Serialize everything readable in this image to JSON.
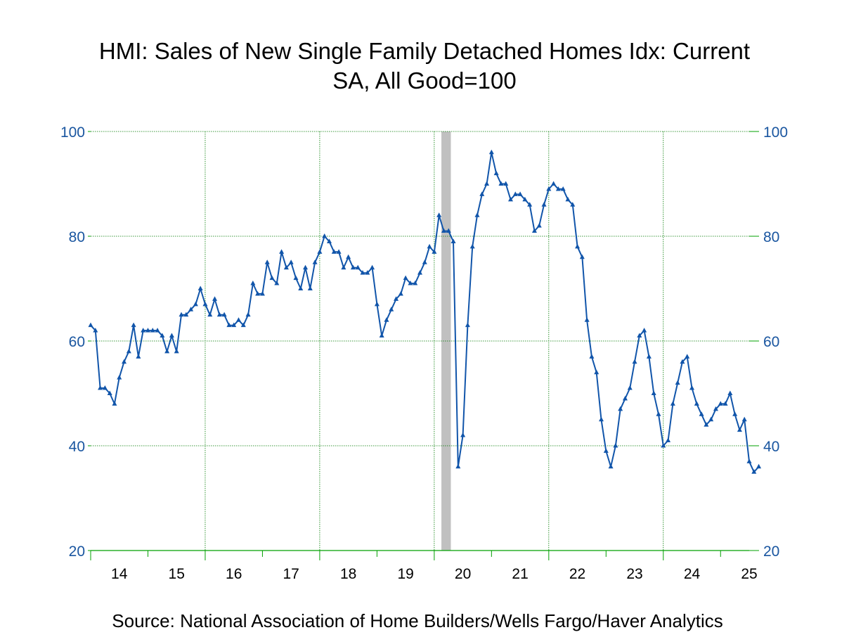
{
  "title_line1": "HMI: Sales of New Single Family Detached Homes Idx: Current",
  "title_line2": "SA, All Good=100",
  "source": "Source:  National Association of Home Builders/Wells Fargo/Haver Analytics",
  "colors": {
    "line": "#1155aa",
    "axis": "#00a000",
    "grid": "#007a00",
    "recession": "#c0c0c0",
    "label": "#1a56a0"
  },
  "chart_data": {
    "type": "line",
    "title": "HMI: Sales of New Single Family Detached Homes Idx: Current SA, All Good=100",
    "xlabel": "",
    "ylabel": "",
    "ylim": [
      20,
      100
    ],
    "yticks": [
      20,
      40,
      60,
      80,
      100
    ],
    "xlim": [
      2014.0,
      2025.5
    ],
    "xtick_labels": [
      "14",
      "15",
      "16",
      "17",
      "18",
      "19",
      "20",
      "21",
      "22",
      "23",
      "24",
      "25"
    ],
    "grid": true,
    "recession_band": [
      2020.125,
      2020.29
    ],
    "series": [
      {
        "name": "",
        "start_month": "2014-01",
        "frequency": "monthly",
        "values": [
          63,
          62,
          51,
          51,
          50,
          48,
          53,
          56,
          58,
          63,
          57,
          62,
          62,
          62,
          62,
          61,
          58,
          61,
          58,
          65,
          65,
          66,
          67,
          70,
          67,
          65,
          68,
          65,
          65,
          63,
          63,
          64,
          63,
          65,
          71,
          69,
          69,
          75,
          72,
          71,
          77,
          74,
          75,
          72,
          70,
          74,
          70,
          75,
          77,
          80,
          79,
          77,
          77,
          74,
          76,
          74,
          74,
          73,
          73,
          74,
          67,
          61,
          64,
          66,
          68,
          69,
          72,
          71,
          71,
          73,
          75,
          78,
          77,
          84,
          81,
          81,
          79,
          36,
          42,
          63,
          78,
          84,
          88,
          90,
          96,
          92,
          90,
          90,
          87,
          88,
          88,
          87,
          86,
          81,
          82,
          86,
          89,
          90,
          89,
          89,
          87,
          86,
          78,
          76,
          64,
          57,
          54,
          45,
          39,
          36,
          40,
          47,
          49,
          51,
          56,
          61,
          62,
          57,
          50,
          46,
          40,
          41,
          48,
          52,
          56,
          57,
          51,
          48,
          46,
          44,
          45,
          47,
          48,
          48,
          50,
          46,
          43,
          45,
          37,
          35,
          36
        ]
      }
    ]
  }
}
